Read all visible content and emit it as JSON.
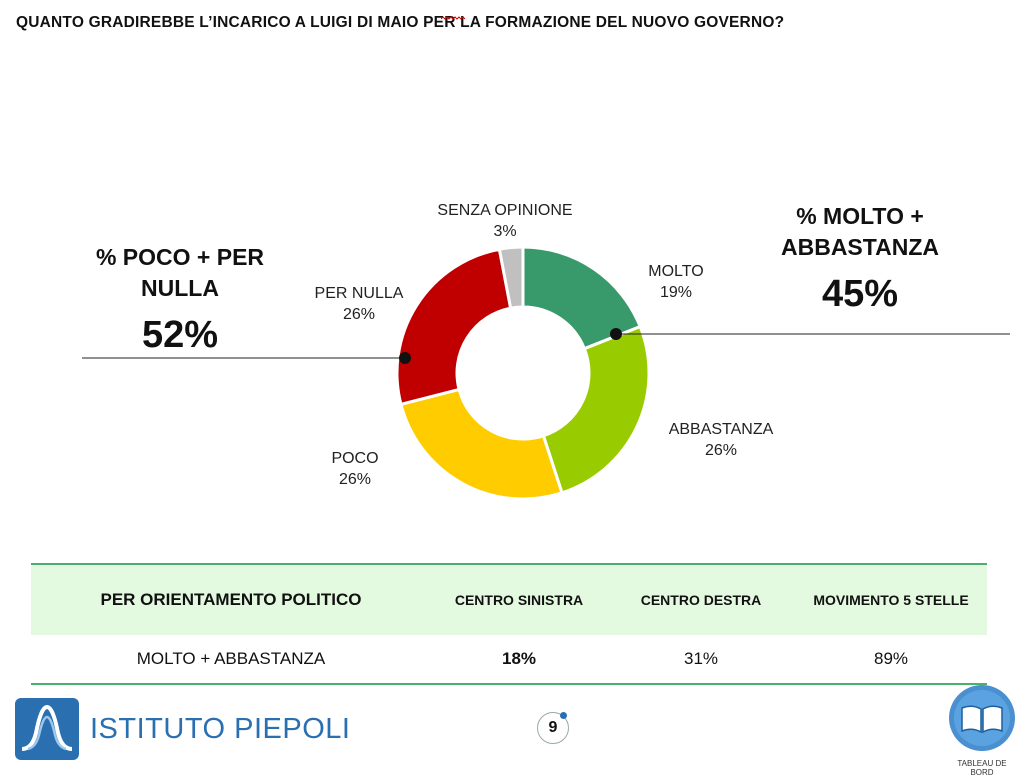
{
  "title": "QUANTO GRADIREBBE L’INCARICO A LUIGI DI MAIO PER LA FORMAZIONE DEL NUOVO GOVERNO?",
  "chart_data": {
    "type": "pie",
    "donut": true,
    "title": "QUANTO GRADIREBBE L’INCARICO A LUIGI DI MAIO PER LA FORMAZIONE DEL NUOVO GOVERNO?",
    "slices": [
      {
        "label": "MOLTO",
        "value": 19,
        "value_label": "19%",
        "color": "#38996a"
      },
      {
        "label": "ABBASTANZA",
        "value": 26,
        "value_label": "26%",
        "color": "#99cc00"
      },
      {
        "label": "POCO",
        "value": 26,
        "value_label": "26%",
        "color": "#ffcc00"
      },
      {
        "label": "PER NULLA",
        "value": 26,
        "value_label": "26%",
        "color": "#c00000"
      },
      {
        "label": "SENZA OPINIONE",
        "value": 3,
        "value_label": "3%",
        "color": "#c0c0c0"
      }
    ]
  },
  "left_summary": {
    "heading_line1": "% POCO + PER",
    "heading_line2": "NULLA",
    "value": "52%"
  },
  "right_summary": {
    "heading_line1": "% MOLTO +",
    "heading_line2": "ABBASTANZA",
    "value": "45%"
  },
  "table": {
    "header": [
      "PER ORIENTAMENTO POLITICO",
      "CENTRO SINISTRA",
      "CENTRO DESTRA",
      "MOVIMENTO 5 STELLE"
    ],
    "row": [
      "MOLTO + ABBASTANZA",
      "18%",
      "31%",
      "89%"
    ],
    "header_bg": "#e4fae0",
    "border_color": "#4caf72"
  },
  "footer": {
    "logo_text": "ISTITUTO PIEPOLI",
    "page_number": "9",
    "badge_text": "TABLEAU DE BORD"
  }
}
